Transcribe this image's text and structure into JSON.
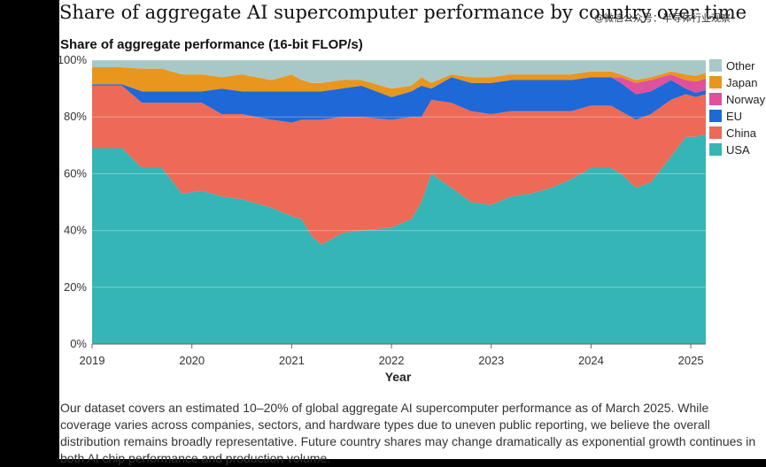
{
  "title": "Share of aggregate AI supercomputer performance by country over time",
  "watermark": "@微信公众号：半导体行业观察",
  "caption": "Our dataset covers an estimated 10–20% of global aggregate AI supercomputer performance as of March 2025. While coverage varies across companies, sectors, and hardware types due to uneven public reporting, we believe the overall distribution remains broadly representative. Future country shares may change dramatically as exponential growth continues in both AI chip performance and production volume.",
  "chart_data": {
    "type": "area",
    "stacked": true,
    "title": "Share of aggregate performance (16-bit FLOP/s)",
    "xlabel": "Year",
    "ylabel": "",
    "xlim": [
      2019,
      2025.15
    ],
    "ylim": [
      0,
      100
    ],
    "x_ticks": [
      "2019",
      "2020",
      "2021",
      "2022",
      "2023",
      "2024",
      "2025"
    ],
    "y_ticks": [
      "0%",
      "20%",
      "40%",
      "60%",
      "80%",
      "100%"
    ],
    "legend_position": "right",
    "x": [
      2019.0,
      2019.3,
      2019.5,
      2019.7,
      2019.9,
      2020.1,
      2020.3,
      2020.5,
      2020.8,
      2021.0,
      2021.1,
      2021.2,
      2021.3,
      2021.5,
      2021.7,
      2022.0,
      2022.2,
      2022.3,
      2022.4,
      2022.6,
      2022.8,
      2023.0,
      2023.2,
      2023.4,
      2023.6,
      2023.8,
      2024.0,
      2024.2,
      2024.3,
      2024.45,
      2024.6,
      2024.8,
      2024.95,
      2025.05,
      2025.15
    ],
    "series": [
      {
        "name": "USA",
        "color": "#35b5b5",
        "values": [
          69,
          69,
          62,
          62,
          53,
          54,
          52,
          51,
          48,
          45,
          44,
          38,
          35,
          39,
          40,
          41,
          44,
          50,
          60,
          55,
          50,
          49,
          52,
          53,
          55,
          58,
          62,
          62,
          60,
          55,
          57,
          66,
          73,
          73,
          74
        ]
      },
      {
        "name": "China",
        "color": "#ed6a57",
        "values": [
          22,
          22,
          23,
          23,
          32,
          31,
          29,
          30,
          31,
          33,
          35,
          41,
          44,
          41,
          40,
          38,
          36,
          30,
          26,
          30,
          32,
          32,
          30,
          29,
          27,
          24,
          22,
          22,
          22,
          24,
          24,
          20,
          15,
          14,
          14
        ]
      },
      {
        "name": "EU",
        "color": "#1f68d7",
        "values": [
          0.5,
          0.5,
          4,
          4,
          4,
          4,
          9,
          8,
          10,
          11,
          10,
          10,
          10,
          10,
          11,
          8,
          9,
          11,
          4,
          9,
          10,
          11,
          11,
          11,
          11,
          11,
          10,
          10,
          10,
          9,
          8,
          7,
          2,
          1.5,
          1.5
        ]
      },
      {
        "name": "Norway",
        "color": "#e0519b",
        "values": [
          0,
          0,
          0,
          0,
          0,
          0,
          0,
          0,
          0,
          0,
          0,
          0,
          0,
          0,
          0,
          0,
          0,
          0,
          0,
          0,
          0,
          0,
          0,
          0,
          0,
          0,
          0,
          0,
          2,
          4,
          4,
          2,
          3,
          4,
          4
        ]
      },
      {
        "name": "Japan",
        "color": "#e8961d",
        "values": [
          6,
          6,
          8,
          8,
          6,
          6,
          4,
          6,
          4,
          6,
          4,
          3,
          3,
          3,
          2,
          3,
          2,
          3,
          2,
          1,
          2,
          2,
          2,
          2,
          2,
          2,
          2,
          2,
          1,
          1,
          1,
          1,
          2,
          2,
          2
        ]
      },
      {
        "name": "Other",
        "color": "#a8c8c8",
        "values": [
          2.5,
          2.5,
          3,
          3,
          5,
          5,
          6,
          5,
          7,
          5,
          7,
          8,
          8,
          7,
          7,
          10,
          9,
          6,
          8,
          5,
          6,
          6,
          5,
          5,
          5,
          5,
          4,
          4,
          5,
          7,
          6,
          4,
          5,
          5.5,
          4.5
        ]
      }
    ]
  }
}
